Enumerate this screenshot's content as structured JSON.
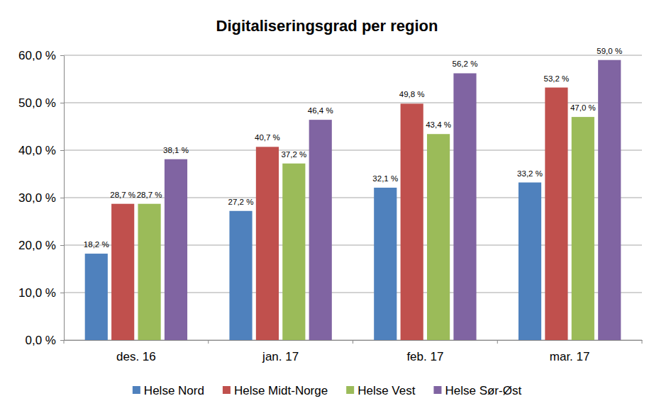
{
  "chart_data": {
    "type": "bar",
    "title": "Digitaliseringsgrad per region",
    "categories": [
      "des. 16",
      "jan. 17",
      "feb. 17",
      "mar. 17"
    ],
    "series": [
      {
        "name": "Helse Nord",
        "color": "#4f81bd",
        "values": [
          18.2,
          27.2,
          32.1,
          33.2
        ],
        "value_labels": [
          "18,2 %",
          "27,2 %",
          "32,1 %",
          "33,2 %"
        ]
      },
      {
        "name": "Helse Midt-Norge",
        "color": "#c0504d",
        "values": [
          28.7,
          40.7,
          49.8,
          53.2
        ],
        "value_labels": [
          "28,7 %",
          "40,7 %",
          "49,8 %",
          "53,2 %"
        ]
      },
      {
        "name": "Helse Vest",
        "color": "#9bbb59",
        "values": [
          28.7,
          37.2,
          43.4,
          47.0
        ],
        "value_labels": [
          "28,7 %",
          "37,2 %",
          "43,4 %",
          "47,0 %"
        ]
      },
      {
        "name": "Helse Sør-Øst",
        "color": "#8064a2",
        "values": [
          38.1,
          46.4,
          56.2,
          59.0
        ],
        "value_labels": [
          "38,1 %",
          "46,4 %",
          "56,2 %",
          "59,0 %"
        ]
      }
    ],
    "ylim": [
      0,
      60
    ],
    "yticks": [
      {
        "value": 0,
        "label": "0,0 %"
      },
      {
        "value": 10,
        "label": "10,0 %"
      },
      {
        "value": 20,
        "label": "20,0 %"
      },
      {
        "value": 30,
        "label": "30,0 %"
      },
      {
        "value": 40,
        "label": "40,0 %"
      },
      {
        "value": 50,
        "label": "50,0 %"
      },
      {
        "value": 60,
        "label": "60,0 %"
      }
    ],
    "grid": true,
    "legend": "bottom",
    "data_labels": true
  }
}
